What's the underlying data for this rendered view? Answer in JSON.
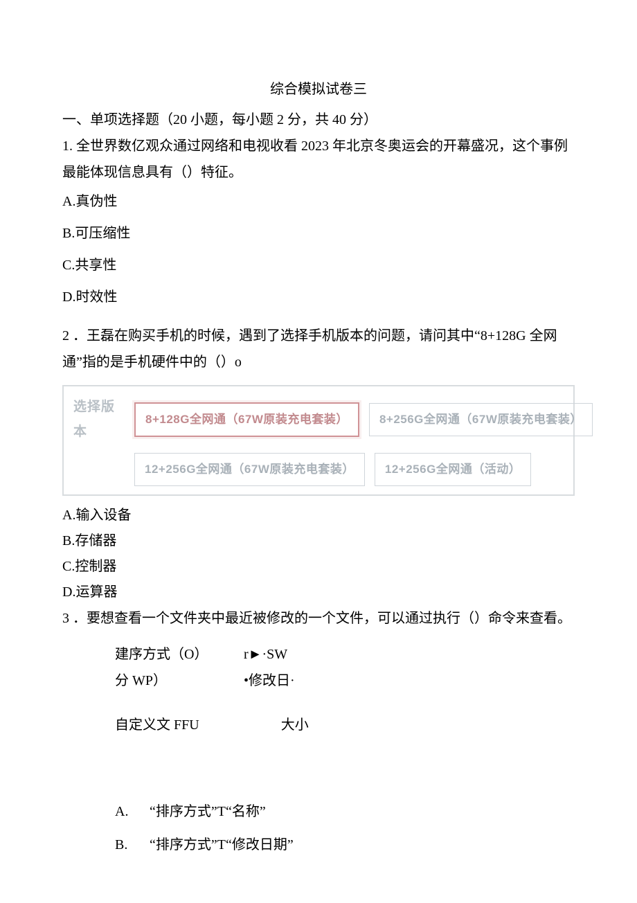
{
  "title": "综合模拟试卷三",
  "section1_header": "一、单项选择题（20 小题，每小题 2 分，共 40 分）",
  "q1": {
    "stem": "1. 全世界数亿观众通过网络和电视收看 2023 年北京冬奥运会的开幕盛况，这个事例最能体现信息具有（）特征。",
    "A": "A.真伪性",
    "B": "B.可压缩性",
    "C": "C.共享性",
    "D": "D.时效性"
  },
  "q2": {
    "stem_line1": "2 ．王磊在购买手机的时候，遇到了选择手机版本的问题，请问其中“8+128G 全网",
    "stem_line2": "通”指的是手机硬件中的（）o",
    "version_label": "选择版本",
    "options_box": {
      "r1c1": "8+128G全网通（67W原装充电套装）",
      "r1c2": "8+256G全网通（67W原装充电套装）",
      "r2c1": "12+256G全网通（67W原装充电套装）",
      "r2c2": "12+256G全网通（活动）"
    },
    "A": "A.输入设备",
    "B": "B.存储器",
    "C": "C.控制器",
    "D": "D.运算器"
  },
  "q3": {
    "stem": "3 ．要想查看一个文件夹中最近被修改的一个文件，可以通过执行（）命令来查看。",
    "cluster": {
      "l1a": "建序方式（O）",
      "l1b": "r►·SW",
      "l2a": "分 WP）",
      "l2b": "•修改日·",
      "l3a": "自定义文 FFU",
      "l3b": "大小"
    },
    "A_letter": "A.",
    "A_text": "“排序方式”T“名称”",
    "B_letter": "B.",
    "B_text": "“排序方式”T“修改日期”"
  }
}
